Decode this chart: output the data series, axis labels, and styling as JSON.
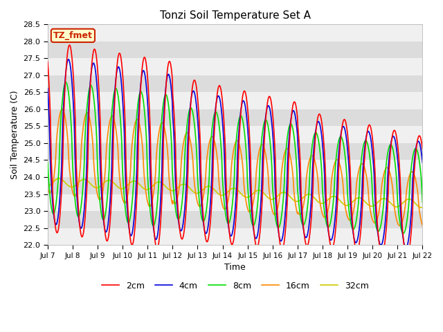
{
  "title": "Tonzi Soil Temperature Set A",
  "xlabel": "Time",
  "ylabel": "Soil Temperature (C)",
  "ylim": [
    22.0,
    28.5
  ],
  "yticks": [
    22.0,
    22.5,
    23.0,
    23.5,
    24.0,
    24.5,
    25.0,
    25.5,
    26.0,
    26.5,
    27.0,
    27.5,
    28.0,
    28.5
  ],
  "xtick_labels": [
    "Jul 7",
    "Jul 8",
    "Jul 9",
    "Jul 10",
    "Jul 11",
    "Jul 12",
    "Jul 13",
    "Jul 14",
    "Jul 15",
    "Jul 16",
    "Jul 17",
    "Jul 18",
    "Jul 19",
    "Jul 20",
    "Jul 21",
    "Jul 22"
  ],
  "colors": {
    "2cm": "#ff0000",
    "4cm": "#0000dd",
    "8cm": "#00dd00",
    "16cm": "#ff8800",
    "32cm": "#cccc00"
  },
  "line_width": 1.2,
  "bg_color_light": "#f0f0f0",
  "bg_color_dark": "#dcdcdc",
  "label_box_text": "TZ_fmet",
  "label_box_facecolor": "#ffffcc",
  "label_box_edgecolor": "#cc2200",
  "label_box_textcolor": "#cc2200",
  "n_days": 15,
  "n_points": 720
}
